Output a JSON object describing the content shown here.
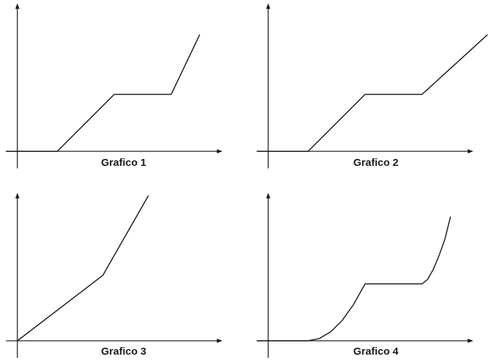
{
  "chart_data": [
    {
      "type": "line",
      "title": "Grafico 1",
      "xlabel": "",
      "ylabel": "",
      "grid": false,
      "xlim": [
        -2,
        36
      ],
      "ylim": [
        -3,
        26
      ],
      "series": [
        {
          "x": [
            -2,
            7,
            17,
            27,
            32
          ],
          "y": [
            0,
            0,
            10,
            10,
            20.5
          ]
        }
      ]
    },
    {
      "type": "line",
      "title": "Grafico 2",
      "xlabel": "",
      "ylabel": "",
      "grid": false,
      "xlim": [
        -2,
        36
      ],
      "ylim": [
        -3,
        26
      ],
      "series": [
        {
          "x": [
            -2,
            7,
            17,
            27,
            38.5
          ],
          "y": [
            0,
            0,
            10,
            10,
            20.5
          ]
        }
      ]
    },
    {
      "type": "line",
      "title": "Grafico 3",
      "xlabel": "",
      "ylabel": "",
      "grid": false,
      "xlim": [
        -2,
        36
      ],
      "ylim": [
        -3,
        26
      ],
      "series": [
        {
          "x": [
            0,
            15,
            23
          ],
          "y": [
            0,
            11.5,
            25.5
          ]
        }
      ]
    },
    {
      "type": "line",
      "title": "Grafico 4",
      "xlabel": "",
      "ylabel": "",
      "grid": false,
      "xlim": [
        -2,
        36
      ],
      "ylim": [
        -3,
        26
      ],
      "series": [
        {
          "x": [
            -2,
            7,
            9,
            11,
            13,
            15,
            17,
            27,
            28,
            29,
            30,
            31,
            32
          ],
          "y": [
            0,
            0,
            0.4,
            1.6,
            3.6,
            6.4,
            10,
            10,
            10.8,
            12.6,
            15,
            17.8,
            21.8
          ]
        }
      ]
    }
  ]
}
